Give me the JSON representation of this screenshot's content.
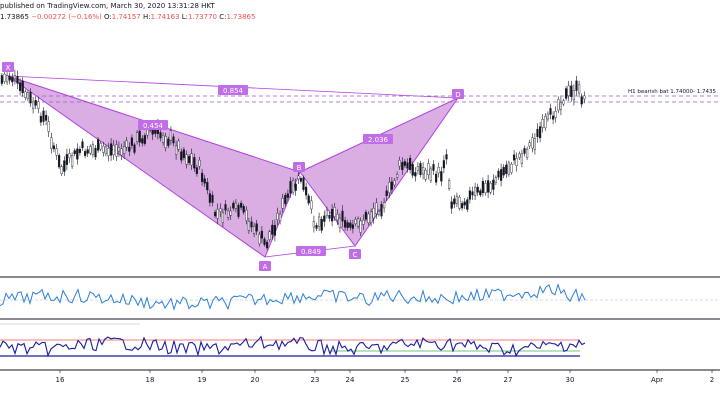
{
  "header": {
    "line1": "published on TradingView.com, March 30, 2020 13:31:28 HKT",
    "price": "1.73865",
    "change": "−0.00272 (−0.16%)",
    "open_label": "O:",
    "open": "1.74157",
    "high_label": "H:",
    "high": "1.74163",
    "low_label": "L:",
    "low": "1.73770",
    "close_label": "C:",
    "close": "1.73865"
  },
  "pattern": {
    "points": {
      "x": "X",
      "a": "A",
      "b": "B",
      "c": "C",
      "d": "D"
    },
    "ratios": {
      "xb": "0.454",
      "xd": "0.854",
      "bd": "2.036",
      "ac": "0.849"
    },
    "annotation": "H1 bearish bat 1.74000- 1.7435"
  },
  "xaxis": {
    "ticks": [
      "16",
      "18",
      "19",
      "20",
      "23",
      "24",
      "25",
      "26",
      "27",
      "30",
      "Apr",
      "2"
    ]
  },
  "colors": {
    "pattern_fill": "#ce93d8",
    "pattern_stroke": "#b040e0",
    "label_bg": "#c06ee8",
    "indicator_blue": "#2d7fd6",
    "rsi_navy": "#1a1aa0",
    "up_candle": "#ffffff",
    "down_candle": "#131722"
  }
}
